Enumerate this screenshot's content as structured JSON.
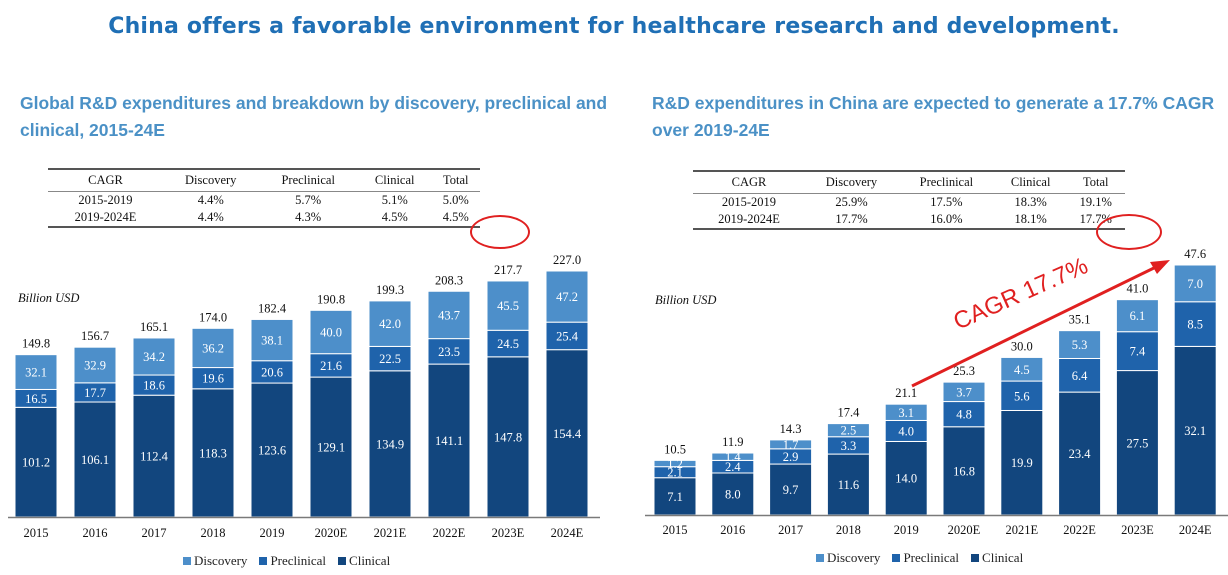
{
  "page": {
    "title": "China offers a favorable environment for healthcare research and development."
  },
  "colors": {
    "discovery": "#4d8fca",
    "preclinical": "#1f63ab",
    "clinical": "#12467e",
    "title": "#1f6fb5",
    "subtitle": "#4b91c6",
    "highlight": "#e02020"
  },
  "left": {
    "title": "Global R&D expenditures and breakdown by discovery, preclinical and clinical, 2015-24E",
    "table": {
      "headers": [
        "CAGR",
        "Discovery",
        "Preclinical",
        "Clinical",
        "Total"
      ],
      "rows": [
        [
          "2015-2019",
          "4.4%",
          "5.7%",
          "5.1%",
          "5.0%"
        ],
        [
          "2019-2024E",
          "4.4%",
          "4.3%",
          "4.5%",
          "4.5%"
        ]
      ],
      "highlighted_cell": "4.5%"
    },
    "legend": [
      "Discovery",
      "Preclinical",
      "Clinical"
    ]
  },
  "right": {
    "title": "R&D expenditures in China are expected to generate a 17.7% CAGR over 2019-24E",
    "table": {
      "headers": [
        "CAGR",
        "Discovery",
        "Preclinical",
        "Clinical",
        "Total"
      ],
      "rows": [
        [
          "2015-2019",
          "25.9%",
          "17.5%",
          "18.3%",
          "19.1%"
        ],
        [
          "2019-2024E",
          "17.7%",
          "16.0%",
          "18.1%",
          "17.7%"
        ]
      ],
      "highlighted_cell": "17.7%"
    },
    "annotation": "CAGR 17.7%",
    "legend": [
      "Discovery",
      "Preclinical",
      "Clinical"
    ]
  },
  "chart_data": [
    {
      "type": "bar",
      "stacked": true,
      "title": "Global R&D expenditures and breakdown by discovery, preclinical and clinical, 2015-24E",
      "ylabel": "Billion USD",
      "xlabel": "",
      "categories": [
        "2015",
        "2016",
        "2017",
        "2018",
        "2019",
        "2020E",
        "2021E",
        "2022E",
        "2023E",
        "2024E"
      ],
      "series": [
        {
          "name": "Clinical",
          "values": [
            101.2,
            106.1,
            112.4,
            118.3,
            123.6,
            129.1,
            134.9,
            141.1,
            147.8,
            154.4
          ]
        },
        {
          "name": "Preclinical",
          "values": [
            16.5,
            17.7,
            18.6,
            19.6,
            20.6,
            21.6,
            22.5,
            23.5,
            24.5,
            25.4
          ]
        },
        {
          "name": "Discovery",
          "values": [
            32.1,
            32.9,
            34.2,
            36.2,
            38.1,
            40.0,
            42.0,
            43.7,
            45.5,
            47.2
          ]
        }
      ],
      "totals": [
        149.8,
        156.7,
        165.1,
        174.0,
        182.4,
        190.8,
        199.3,
        208.3,
        217.7,
        227.0
      ],
      "ylim": [
        0,
        227.0
      ],
      "legend_position": "bottom",
      "grid": false
    },
    {
      "type": "bar",
      "stacked": true,
      "title": "R&D expenditures in China are expected to generate a 17.7% CAGR over 2019-24E",
      "ylabel": "Billion USD",
      "xlabel": "",
      "categories": [
        "2015",
        "2016",
        "2017",
        "2018",
        "2019",
        "2020E",
        "2021E",
        "2022E",
        "2023E",
        "2024E"
      ],
      "series": [
        {
          "name": "Clinical",
          "values": [
            7.1,
            8.0,
            9.7,
            11.6,
            14.0,
            16.8,
            19.9,
            23.4,
            27.5,
            32.1
          ]
        },
        {
          "name": "Preclinical",
          "values": [
            2.1,
            2.4,
            2.9,
            3.3,
            4.0,
            4.8,
            5.6,
            6.4,
            7.4,
            8.5
          ]
        },
        {
          "name": "Discovery",
          "values": [
            1.2,
            1.4,
            1.7,
            2.5,
            3.1,
            3.7,
            4.5,
            5.3,
            6.1,
            7.0
          ]
        }
      ],
      "totals": [
        10.5,
        11.9,
        14.3,
        17.4,
        21.1,
        25.3,
        30.0,
        35.1,
        41.0,
        47.6
      ],
      "ylim": [
        0,
        47.6
      ],
      "annotations": [
        "CAGR 17.7%"
      ],
      "legend_position": "bottom",
      "grid": false
    }
  ]
}
